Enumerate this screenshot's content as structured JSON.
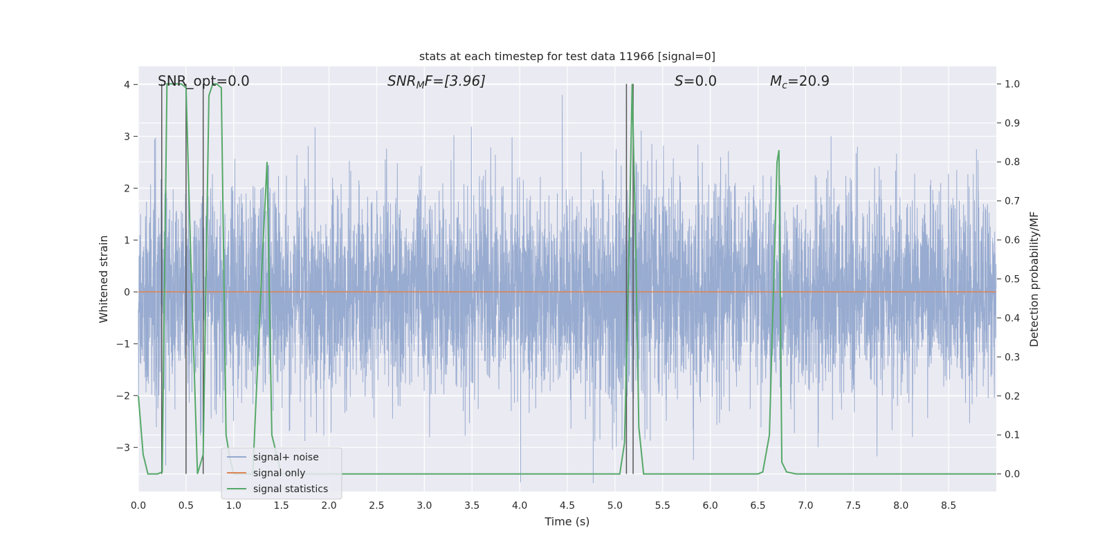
{
  "chart_data": {
    "type": "line",
    "title": "stats at each timestep for test data 11966 [signal=0]",
    "xlabel": "Time (s)",
    "ylabel": "Whitened strain",
    "y2label": "Detection probability/MF",
    "xlim": [
      0,
      9.0
    ],
    "ylim": [
      -3.85,
      4.35
    ],
    "y2lim": [
      -0.045,
      1.045
    ],
    "xticks": [
      "0.0",
      "0.5",
      "1.0",
      "1.5",
      "2.0",
      "2.5",
      "3.0",
      "3.5",
      "4.0",
      "4.5",
      "5.0",
      "5.5",
      "6.0",
      "6.5",
      "7.0",
      "7.5",
      "8.0",
      "8.5"
    ],
    "yticks": [
      "4",
      "3",
      "2",
      "1",
      "0",
      "−1",
      "−2",
      "−3"
    ],
    "y2ticks": [
      "1.0",
      "0.9",
      "0.8",
      "0.7",
      "0.6",
      "0.5",
      "0.4",
      "0.3",
      "0.2",
      "0.1",
      "0.0"
    ],
    "grid": true,
    "legend_position": "lower-left",
    "annotations": {
      "snr_opt": "SNR_opt=0.0",
      "snr_mf_main": "SNR",
      "snr_mf_sub": "M",
      "snr_mf_rest": "F=[3.96]",
      "s_main": "S",
      "s_rest": "=0.0",
      "mc_main": "M",
      "mc_sub": "c",
      "mc_rest": "=20.9"
    },
    "series": [
      {
        "name": "signal+ noise",
        "color": "#94a8ce",
        "description_values": "white noise, amplitude approx ±2 std, peaks to about 3.8",
        "noise_std": 1.0,
        "noise_peak": 3.8,
        "sample_rate": 600
      },
      {
        "name": "signal only",
        "color": "#dd8452",
        "x": [
          0,
          9.0
        ],
        "y": [
          0,
          0
        ]
      },
      {
        "name": "signal statistics",
        "color": "#55a868",
        "axis": "right",
        "x": [
          0.0,
          0.05,
          0.1,
          0.2,
          0.25,
          0.3,
          0.45,
          0.5,
          0.55,
          0.62,
          0.68,
          0.74,
          0.78,
          0.82,
          0.87,
          0.92,
          0.96,
          1.0,
          1.2,
          1.3,
          1.35,
          1.4,
          1.5,
          2.0,
          3.0,
          4.0,
          5.0,
          5.05,
          5.1,
          5.15,
          5.18,
          5.22,
          5.25,
          5.3,
          5.5,
          6.0,
          6.5,
          6.55,
          6.62,
          6.7,
          6.72,
          6.75,
          6.8,
          6.9,
          7.0,
          8.0,
          9.0
        ],
        "y": [
          0.2,
          0.05,
          0.0,
          0.0,
          0.005,
          1.0,
          1.0,
          0.99,
          0.55,
          0.0,
          0.05,
          0.97,
          1.0,
          1.0,
          0.99,
          0.1,
          0.04,
          0.0,
          0.0,
          0.55,
          0.8,
          0.1,
          0.0,
          0.0,
          0.0,
          0.0,
          0.0,
          0.0,
          0.08,
          0.6,
          1.0,
          0.55,
          0.12,
          0.0,
          0.0,
          0.0,
          0.0,
          0.005,
          0.1,
          0.8,
          0.83,
          0.03,
          0.005,
          0.0,
          0.0,
          0.0,
          0.0
        ]
      }
    ],
    "vertical_lines": {
      "color": "#555555",
      "x": [
        0.245,
        0.5,
        0.68,
        5.12,
        5.19
      ]
    },
    "legend": [
      {
        "label": "signal+ noise",
        "color": "#94a8ce"
      },
      {
        "label": "signal only",
        "color": "#dd8452"
      },
      {
        "label": "signal statistics",
        "color": "#55a868"
      }
    ]
  }
}
